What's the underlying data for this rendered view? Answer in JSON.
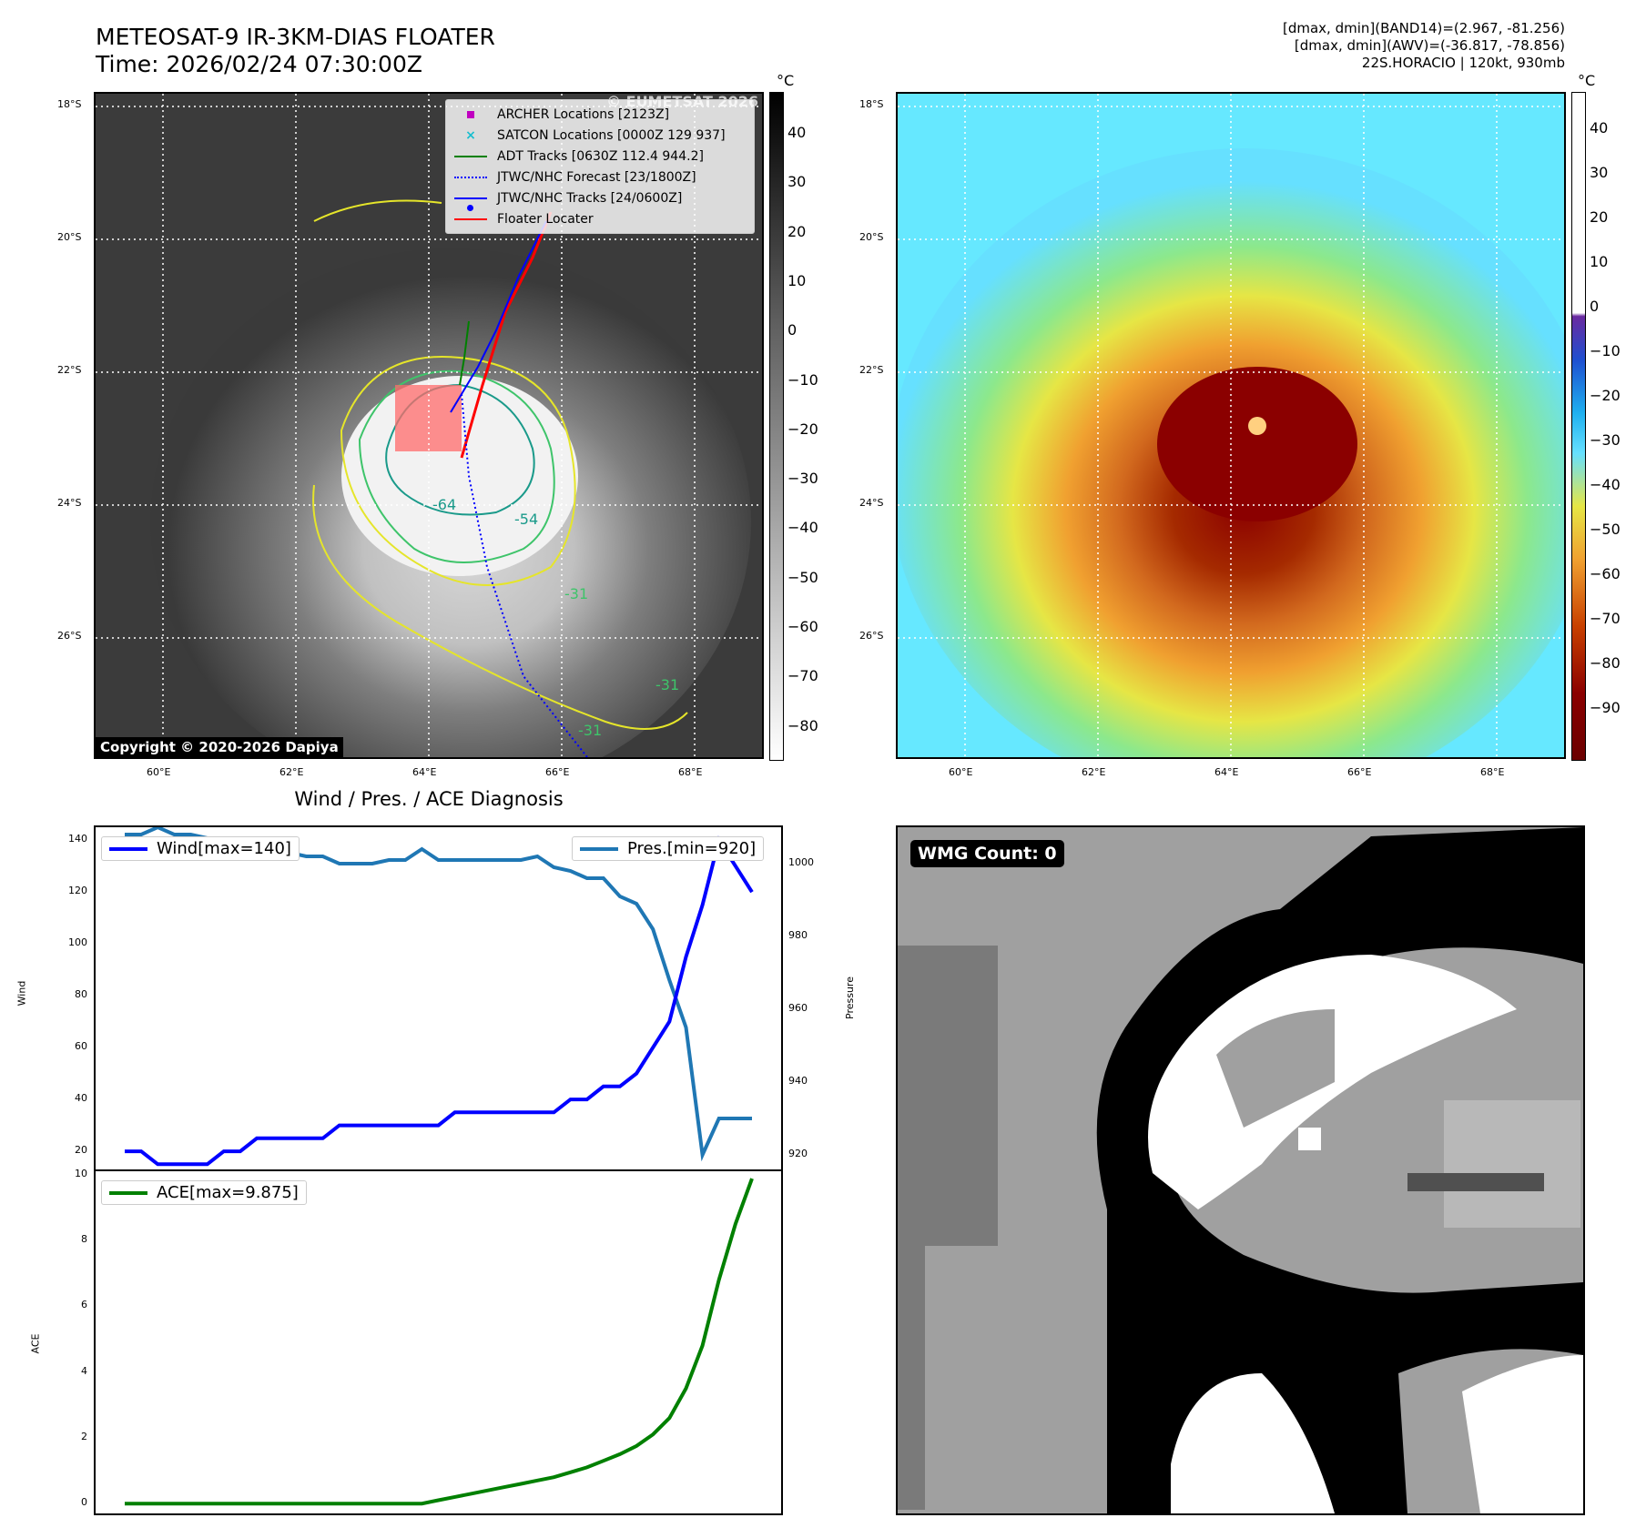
{
  "header": {
    "title_line1": "METEOSAT-9 IR-3KM-DIAS FLOATER",
    "title_line2": "Time: 2026/02/24 07:30:00Z",
    "info_line1": "[dmax, dmin](BAND14)=(2.967, -81.256)",
    "info_line2": "[dmax, dmin](AWV)=(-36.817, -78.856)",
    "info_line3": "22S.HORACIO | 120kt, 930mb"
  },
  "map_axes": {
    "lat_labels": [
      "18°S",
      "20°S",
      "22°S",
      "24°S",
      "26°S"
    ],
    "lon_labels": [
      "60°E",
      "62°E",
      "64°E",
      "66°E",
      "68°E"
    ]
  },
  "ir_panel": {
    "legend": [
      {
        "label": "ARCHER Locations [2123Z]",
        "color": "#c000c0",
        "symbol": "square"
      },
      {
        "label": "SATCON Locations [0000Z 129 937]",
        "color": "#17becf",
        "symbol": "x"
      },
      {
        "label": "ADT Tracks [0630Z 112.4 944.2]",
        "color": "#008000",
        "symbol": "line"
      },
      {
        "label": "JTWC/NHC Forecast [23/1800Z]",
        "color": "#0000ff",
        "symbol": "dotted"
      },
      {
        "label": "JTWC/NHC Tracks [24/0600Z]",
        "color": "#0000ff",
        "symbol": "line-dot"
      },
      {
        "label": "Floater Locater",
        "color": "#ff0000",
        "symbol": "line"
      }
    ],
    "watermark": "© EUMETSAT 2026",
    "copyright": "Copyright © 2020-2026 Dapiya",
    "contour_labels": [
      "-64",
      "-54",
      "-31",
      "-31",
      "-31"
    ],
    "colorbar_unit": "°C",
    "colorbar_ticks": [
      "40",
      "30",
      "20",
      "10",
      "0",
      "−10",
      "−20",
      "−30",
      "−40",
      "−50",
      "−60",
      "−70",
      "−80"
    ]
  },
  "awv_panel": {
    "colorbar_unit": "°C",
    "colorbar_ticks": [
      "40",
      "30",
      "20",
      "10",
      "0",
      "−10",
      "−20",
      "−30",
      "−40",
      "−50",
      "−60",
      "−70",
      "−80",
      "−90"
    ]
  },
  "wmg_panel": {
    "label": "WMG Count: 0"
  },
  "chart_data": [
    {
      "type": "line",
      "title": "Wind / Pres. / ACE Diagnosis",
      "ylabel": "Wind",
      "y2label": "Pressure",
      "ylim": [
        13,
        145
      ],
      "y2lim": [
        916,
        1010
      ],
      "yticks": [
        "20",
        "40",
        "60",
        "80",
        "100",
        "120",
        "140"
      ],
      "y2ticks": [
        "920",
        "940",
        "960",
        "980",
        "1000"
      ],
      "series": [
        {
          "name": "Wind[max=140]",
          "axis": "left",
          "color": "#0000ff",
          "values": [
            20,
            20,
            15,
            15,
            15,
            15,
            20,
            20,
            25,
            25,
            25,
            25,
            25,
            30,
            30,
            30,
            30,
            30,
            30,
            30,
            35,
            35,
            35,
            35,
            35,
            35,
            35,
            40,
            40,
            45,
            45,
            50,
            60,
            70,
            95,
            115,
            140,
            130,
            120
          ]
        },
        {
          "name": "Pres.[min=920]",
          "axis": "right",
          "color": "#1f77b4",
          "values": [
            1008,
            1008,
            1010,
            1008,
            1008,
            1007,
            1007,
            1006,
            1006,
            1003,
            1003,
            1002,
            1002,
            1000,
            1000,
            1000,
            1001,
            1001,
            1004,
            1001,
            1001,
            1001,
            1001,
            1001,
            1001,
            1002,
            999,
            998,
            996,
            996,
            991,
            989,
            982,
            968,
            955,
            920,
            930,
            930,
            930
          ]
        }
      ]
    },
    {
      "type": "line",
      "ylabel": "ACE",
      "ylim": [
        -0.3,
        10.1
      ],
      "yticks": [
        "0",
        "2",
        "4",
        "6",
        "8",
        "10"
      ],
      "series": [
        {
          "name": "ACE[max=9.875]",
          "color": "#008000",
          "values": [
            0,
            0,
            0,
            0,
            0,
            0,
            0,
            0,
            0,
            0,
            0,
            0,
            0,
            0,
            0,
            0,
            0,
            0,
            0,
            0.1,
            0.2,
            0.3,
            0.4,
            0.5,
            0.6,
            0.7,
            0.8,
            0.95,
            1.1,
            1.3,
            1.5,
            1.75,
            2.1,
            2.6,
            3.5,
            4.8,
            6.8,
            8.5,
            9.875
          ]
        }
      ]
    }
  ]
}
